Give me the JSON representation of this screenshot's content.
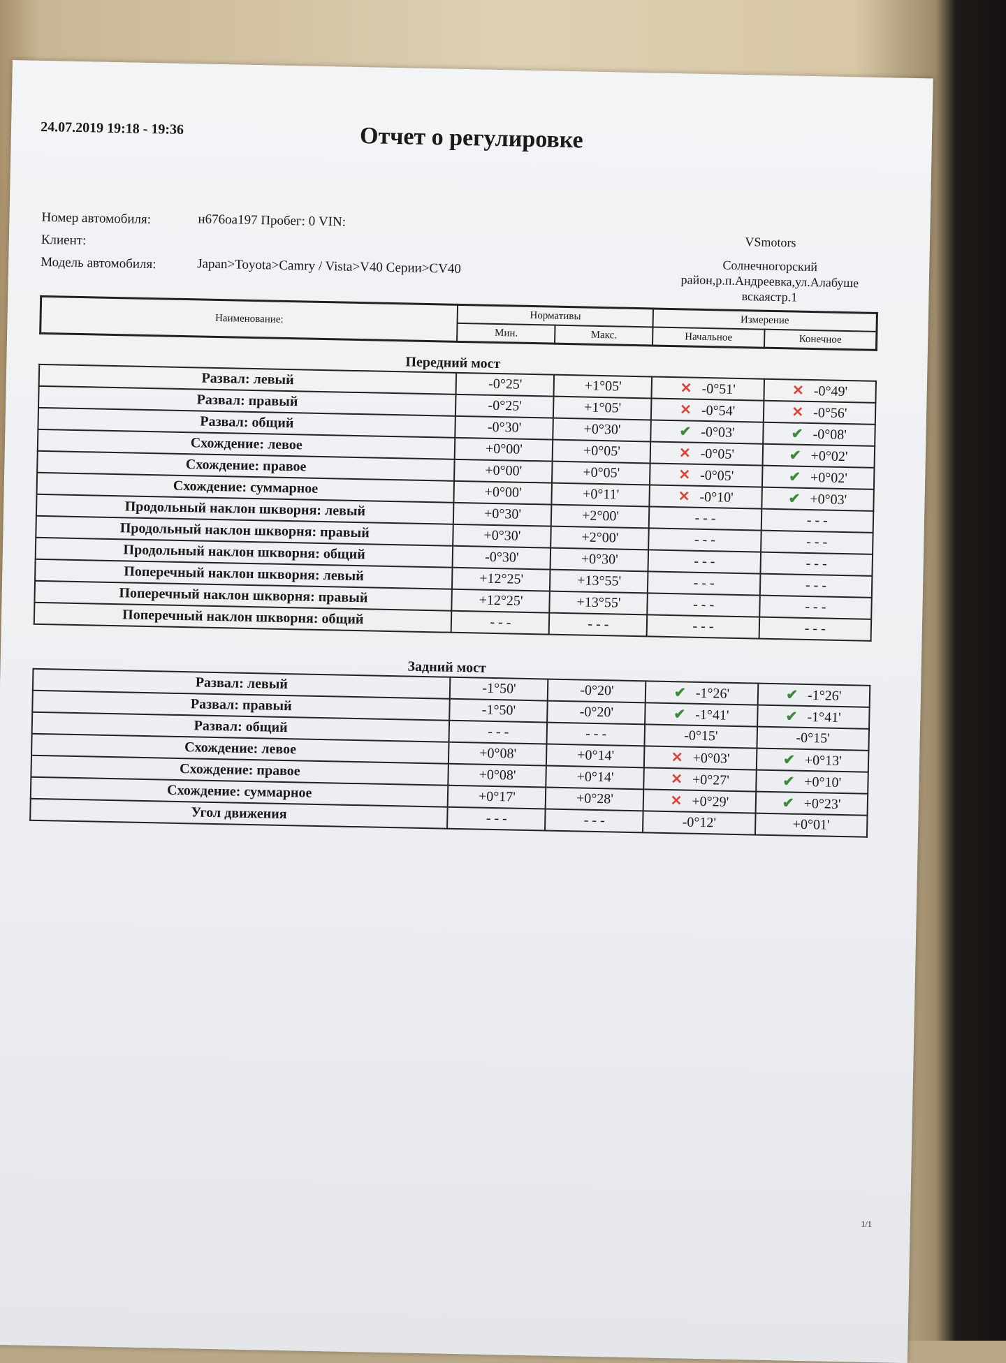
{
  "header": {
    "date": "24.07.2019 19:18 - 19:36",
    "title": "Отчет о регулировке"
  },
  "info": {
    "car_number_label": "Номер автомобиля:",
    "car_number_value": "н676оа197 Пробег:  0 VIN:",
    "client_label": "Клиент:",
    "model_label": "Модель автомобиля:",
    "model_value": "Japan>Toyota>Camry / Vista>V40 Серии>CV40"
  },
  "company": {
    "name": "VSmotors",
    "address1": "Солнечногорский",
    "address2": "район,р.п.Андреевка,ул.Алабуше",
    "address3": "вскаястр.1"
  },
  "table_header": {
    "name": "Наименование:",
    "norms": "Нормативы",
    "min": "Мин.",
    "max": "Макс.",
    "measure": "Измерение",
    "initial": "Начальное",
    "final": "Конечное"
  },
  "colors": {
    "fail": "#d9463a",
    "ok": "#3e8a3a"
  },
  "front": {
    "title": "Передний мост",
    "rows": [
      {
        "name": "Развал: левый",
        "min": "-0°25'",
        "max": "+1°05'",
        "init": "-0°51'",
        "init_status": "fail",
        "final": "-0°49'",
        "final_status": "fail"
      },
      {
        "name": "Развал: правый",
        "min": "-0°25'",
        "max": "+1°05'",
        "init": "-0°54'",
        "init_status": "fail",
        "final": "-0°56'",
        "final_status": "fail"
      },
      {
        "name": "Развал: общий",
        "min": "-0°30'",
        "max": "+0°30'",
        "init": "-0°03'",
        "init_status": "ok",
        "final": "-0°08'",
        "final_status": "ok"
      },
      {
        "name": "Схождение: левое",
        "min": "+0°00'",
        "max": "+0°05'",
        "init": "-0°05'",
        "init_status": "fail",
        "final": "+0°02'",
        "final_status": "ok"
      },
      {
        "name": "Схождение: правое",
        "min": "+0°00'",
        "max": "+0°05'",
        "init": "-0°05'",
        "init_status": "fail",
        "final": "+0°02'",
        "final_status": "ok"
      },
      {
        "name": "Схождение: суммарное",
        "min": "+0°00'",
        "max": "+0°11'",
        "init": "-0°10'",
        "init_status": "fail",
        "final": "+0°03'",
        "final_status": "ok"
      },
      {
        "name": "Продольный наклон шкворня: левый",
        "min": "+0°30'",
        "max": "+2°00'",
        "init": "- - -",
        "final": "- - -"
      },
      {
        "name": "Продольный наклон шкворня: правый",
        "min": "+0°30'",
        "max": "+2°00'",
        "init": "- - -",
        "final": "- - -"
      },
      {
        "name": "Продольный наклон шкворня: общий",
        "min": "-0°30'",
        "max": "+0°30'",
        "init": "- - -",
        "final": "- - -"
      },
      {
        "name": "Поперечный наклон шкворня: левый",
        "min": "+12°25'",
        "max": "+13°55'",
        "init": "- - -",
        "final": "- - -"
      },
      {
        "name": "Поперечный наклон шкворня: правый",
        "min": "+12°25'",
        "max": "+13°55'",
        "init": "- - -",
        "final": "- - -"
      },
      {
        "name": "Поперечный наклон шкворня: общий",
        "min": "- - -",
        "max": "- - -",
        "init": "- - -",
        "final": "- - -"
      }
    ]
  },
  "rear": {
    "title": "Задний мост",
    "rows": [
      {
        "name": "Развал: левый",
        "min": "-1°50'",
        "max": "-0°20'",
        "init": "-1°26'",
        "init_status": "ok",
        "final": "-1°26'",
        "final_status": "ok"
      },
      {
        "name": "Развал: правый",
        "min": "-1°50'",
        "max": "-0°20'",
        "init": "-1°41'",
        "init_status": "ok",
        "final": "-1°41'",
        "final_status": "ok"
      },
      {
        "name": "Развал: общий",
        "min": "- - -",
        "max": "- - -",
        "init": "-0°15'",
        "final": "-0°15'"
      },
      {
        "name": "Схождение: левое",
        "min": "+0°08'",
        "max": "+0°14'",
        "init": "+0°03'",
        "init_status": "fail",
        "final": "+0°13'",
        "final_status": "ok"
      },
      {
        "name": "Схождение: правое",
        "min": "+0°08'",
        "max": "+0°14'",
        "init": "+0°27'",
        "init_status": "fail",
        "final": "+0°10'",
        "final_status": "ok"
      },
      {
        "name": "Схождение: суммарное",
        "min": "+0°17'",
        "max": "+0°28'",
        "init": "+0°29'",
        "init_status": "fail",
        "final": "+0°23'",
        "final_status": "ok"
      },
      {
        "name": "Угол движения",
        "min": "- - -",
        "max": "- - -",
        "init": "-0°12'",
        "final": "+0°01'"
      }
    ]
  },
  "footer": {
    "page": "1/1"
  }
}
